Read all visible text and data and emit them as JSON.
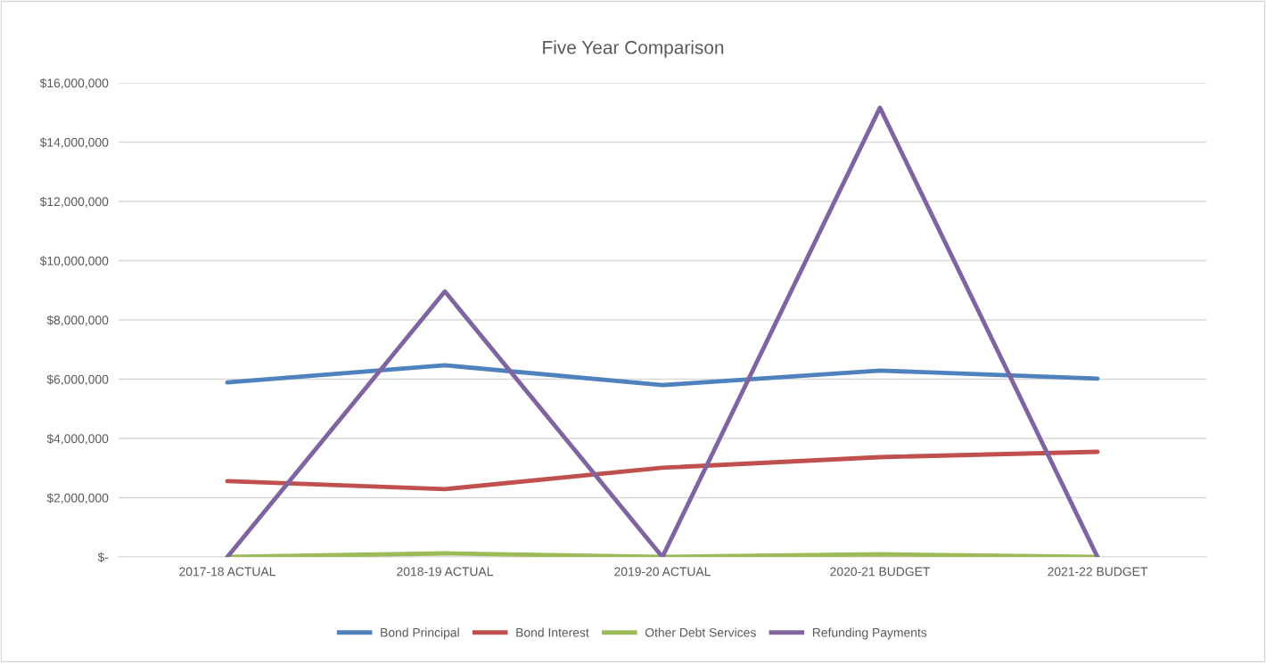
{
  "chart_data": {
    "type": "line",
    "title": "Five Year Comparison",
    "categories": [
      "2017-18 ACTUAL",
      "2018-19 ACTUAL",
      "2019-20 ACTUAL",
      "2020-21 BUDGET",
      "2021-22 BUDGET"
    ],
    "series": [
      {
        "name": "Bond Principal",
        "color": "#4f81bd",
        "values": [
          5890000,
          6470000,
          5800000,
          6290000,
          6020000
        ]
      },
      {
        "name": "Bond Interest",
        "color": "#c0504d",
        "values": [
          2560000,
          2290000,
          3010000,
          3370000,
          3550000
        ]
      },
      {
        "name": "Other Debt Services",
        "color": "#9bbb59",
        "values": [
          0,
          120000,
          0,
          90000,
          0
        ]
      },
      {
        "name": "Refunding Payments",
        "color": "#8064a2",
        "values": [
          0,
          8960000,
          0,
          15160000,
          0
        ]
      }
    ],
    "ylim": [
      0,
      16000000
    ],
    "yticks": [
      {
        "value": 0,
        "label": "$-"
      },
      {
        "value": 2000000,
        "label": "$2,000,000"
      },
      {
        "value": 4000000,
        "label": "$4,000,000"
      },
      {
        "value": 6000000,
        "label": "$6,000,000"
      },
      {
        "value": 8000000,
        "label": "$8,000,000"
      },
      {
        "value": 10000000,
        "label": "$10,000,000"
      },
      {
        "value": 12000000,
        "label": "$12,000,000"
      },
      {
        "value": 14000000,
        "label": "$14,000,000"
      },
      {
        "value": 16000000,
        "label": "$16,000,000"
      }
    ],
    "grid": "y",
    "legend": "bottom",
    "marker": "none",
    "line_style": "solid"
  }
}
